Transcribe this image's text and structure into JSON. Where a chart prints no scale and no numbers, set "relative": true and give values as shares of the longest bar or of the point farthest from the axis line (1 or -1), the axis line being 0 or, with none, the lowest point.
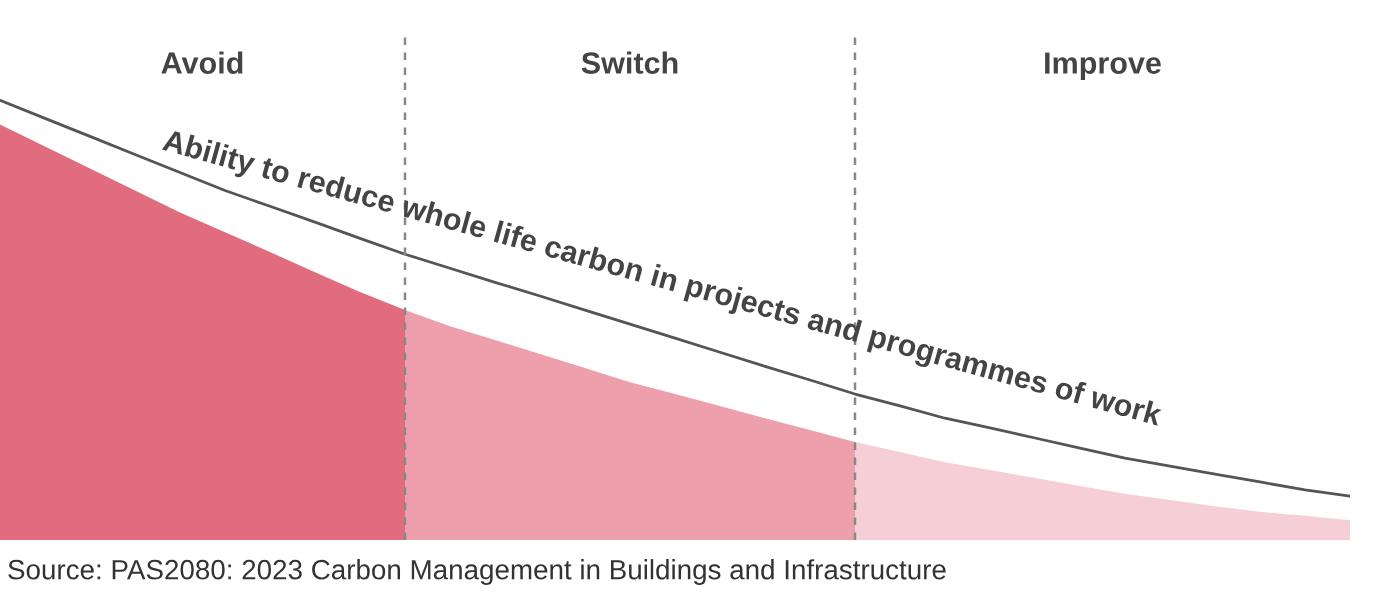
{
  "chart_data": {
    "type": "area",
    "relative": true,
    "categories": [
      null,
      null,
      null,
      null,
      null,
      null,
      null,
      null,
      null,
      null,
      null,
      null,
      null,
      null,
      null,
      null,
      null,
      null,
      null,
      null,
      null,
      null,
      null,
      null,
      null,
      null,
      null,
      null,
      null,
      null,
      null
    ],
    "series": [
      {
        "type": "line",
        "color": "#555555",
        "values": [
          1,
          0.959,
          0.918,
          0.877,
          0.836,
          0.795,
          0.759,
          0.723,
          0.686,
          0.65,
          0.618,
          0.586,
          0.555,
          0.523,
          0.491,
          0.459,
          0.427,
          0.395,
          0.364,
          0.332,
          0.305,
          0.277,
          0.255,
          0.232,
          0.209,
          0.186,
          0.168,
          0.15,
          0.132,
          0.114,
          0.1
        ]
      },
      {
        "color": "#e06c7e",
        "values": [
          0.945,
          0.895,
          0.845,
          0.795,
          0.745,
          0.7,
          0.655,
          0.609,
          0.564,
          0.523,
          null,
          null,
          null,
          null,
          null,
          null,
          null,
          null,
          null,
          null,
          null,
          null,
          null,
          null,
          null,
          null,
          null,
          null,
          null,
          null,
          null
        ]
      },
      {
        "color": "#eda0ab",
        "values": [
          null,
          null,
          null,
          null,
          null,
          null,
          null,
          null,
          null,
          0.523,
          0.486,
          0.455,
          0.423,
          0.391,
          0.359,
          0.332,
          0.305,
          0.277,
          0.25,
          0.223,
          null,
          null,
          null,
          null,
          null,
          null,
          null,
          null,
          null,
          null,
          null
        ]
      },
      {
        "color": "#f6cfd6",
        "values": [
          null,
          null,
          null,
          null,
          null,
          null,
          null,
          null,
          null,
          null,
          null,
          null,
          null,
          null,
          null,
          null,
          null,
          null,
          null,
          0.223,
          0.2,
          0.177,
          0.159,
          0.141,
          0.123,
          0.105,
          0.091,
          0.077,
          0.064,
          0.055,
          0.045
        ]
      }
    ],
    "annotations": [
      "Avoid",
      "Switch",
      "Improve",
      "Ability to reduce whole life carbon in projects and programmes of work",
      "Source: PAS2080: 2023 Carbon Management in Buildings and Infrastructure"
    ]
  }
}
